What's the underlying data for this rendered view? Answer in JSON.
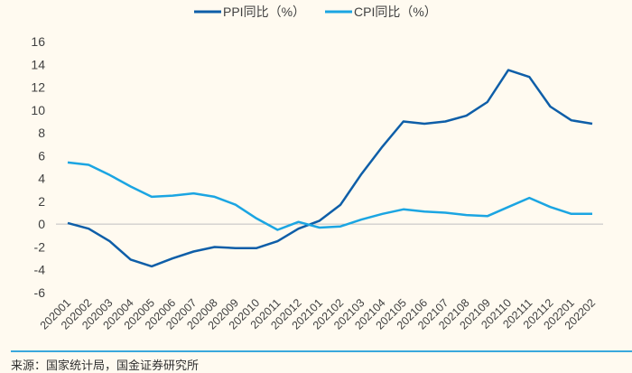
{
  "chart_data": {
    "type": "line",
    "title": "",
    "xlabel": "",
    "ylabel": "",
    "ylim": [
      -6,
      16
    ],
    "yticks": [
      -6,
      -4,
      -2,
      0,
      2,
      4,
      6,
      8,
      10,
      12,
      14,
      16
    ],
    "grid": false,
    "legend_position": "top",
    "categories": [
      "202001",
      "202002",
      "202003",
      "202004",
      "202005",
      "202006",
      "202007",
      "202008",
      "202009",
      "202010",
      "202011",
      "202012",
      "202101",
      "202102",
      "202103",
      "202104",
      "202105",
      "202106",
      "202107",
      "202108",
      "202109",
      "202110",
      "202111",
      "202112",
      "202201",
      "202202"
    ],
    "series": [
      {
        "name": "PPI同比（%）",
        "color": "#0e5ea8",
        "values": [
          0.1,
          -0.4,
          -1.5,
          -3.1,
          -3.7,
          -3.0,
          -2.4,
          -2.0,
          -2.1,
          -2.1,
          -1.5,
          -0.4,
          0.3,
          1.7,
          4.4,
          6.8,
          9.0,
          8.8,
          9.0,
          9.5,
          10.7,
          13.5,
          12.9,
          10.3,
          9.1,
          8.8
        ]
      },
      {
        "name": "CPI同比（%）",
        "color": "#1ba5e2",
        "values": [
          5.4,
          5.2,
          4.3,
          3.3,
          2.4,
          2.5,
          2.7,
          2.4,
          1.7,
          0.5,
          -0.5,
          0.2,
          -0.3,
          -0.2,
          0.4,
          0.9,
          1.3,
          1.1,
          1.0,
          0.8,
          0.7,
          1.5,
          2.3,
          1.5,
          0.9,
          0.9
        ]
      }
    ]
  },
  "source": "来源：国家统计局，国金证券研究所"
}
